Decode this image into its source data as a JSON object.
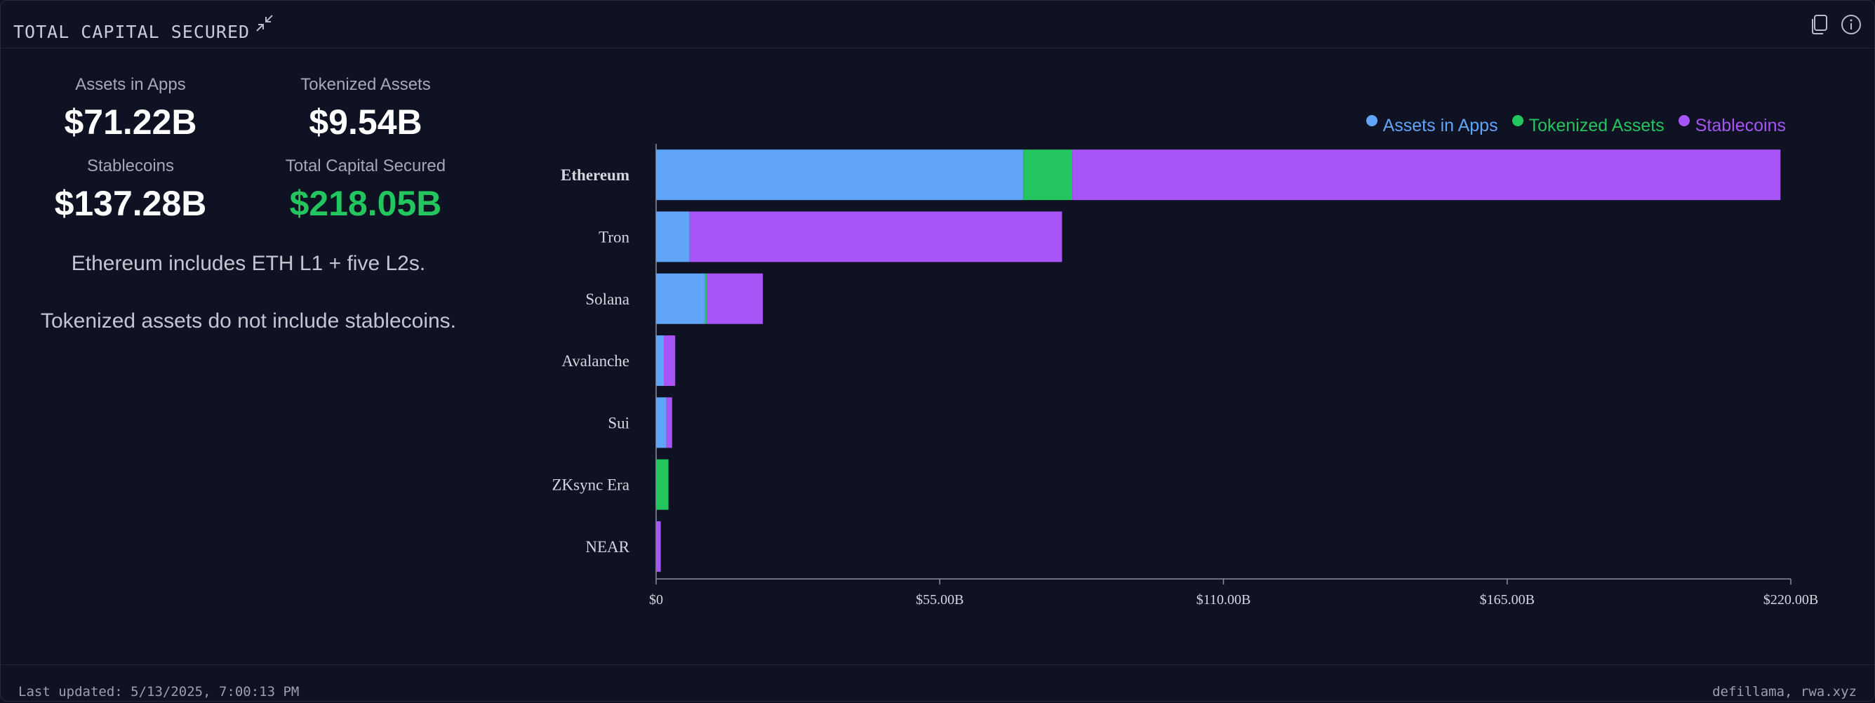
{
  "header": {
    "title": "TOTAL CAPITAL SECURED",
    "collapse_icon": "collapse-arrows-icon",
    "copy_icon": "copy-icon",
    "info_icon": "info-icon"
  },
  "stats": {
    "assets_in_apps": {
      "label": "Assets in Apps",
      "value": "$71.22B"
    },
    "tokenized_assets": {
      "label": "Tokenized Assets",
      "value": "$9.54B"
    },
    "stablecoins": {
      "label": "Stablecoins",
      "value": "$137.28B"
    },
    "total": {
      "label": "Total Capital Secured",
      "value": "$218.05B"
    }
  },
  "notes": {
    "note1": "Ethereum includes ETH L1 + five L2s.",
    "note2": "Tokenized assets do not include stablecoins."
  },
  "colors": {
    "assets_in_apps": "#60a5fa",
    "tokenized_assets": "#22c55e",
    "stablecoins": "#a855f7"
  },
  "chart_data": {
    "type": "bar",
    "orientation": "horizontal",
    "stacked": true,
    "categories": [
      "Ethereum",
      "Tron",
      "Solana",
      "Avalanche",
      "Sui",
      "ZKsync Era",
      "NEAR"
    ],
    "series": [
      {
        "name": "Assets in Apps",
        "color": "#60a5fa",
        "values": [
          71.2,
          6.5,
          9.5,
          1.5,
          2.0,
          0.0,
          0.0
        ]
      },
      {
        "name": "Tokenized Assets",
        "color": "#22c55e",
        "values": [
          9.5,
          0.0,
          0.3,
          0.0,
          0.0,
          2.4,
          0.0
        ]
      },
      {
        "name": "Stablecoins",
        "color": "#a855f7",
        "values": [
          137.3,
          72.2,
          10.9,
          2.2,
          1.1,
          0.0,
          0.9
        ]
      }
    ],
    "xlim": [
      0,
      220
    ],
    "x_ticks": [
      {
        "value": 0,
        "label": "$0"
      },
      {
        "value": 55,
        "label": "$55.00B"
      },
      {
        "value": 110,
        "label": "$110.00B"
      },
      {
        "value": 165,
        "label": "$165.00B"
      },
      {
        "value": 220,
        "label": "$220.00B"
      }
    ],
    "legend_position": "top-right",
    "grid": false
  },
  "footer": {
    "last_updated": "Last updated: 5/13/2025, 7:00:13 PM",
    "sources": "defillama, rwa.xyz"
  }
}
